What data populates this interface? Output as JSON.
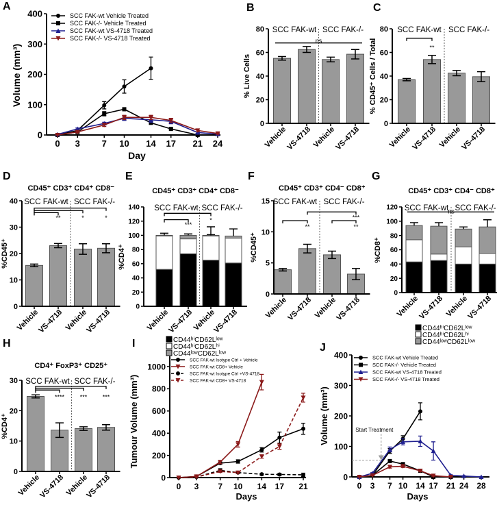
{
  "panel_letters": [
    "A",
    "B",
    "C",
    "D",
    "E",
    "F",
    "G",
    "H",
    "I",
    "J"
  ],
  "chart_data": [
    {
      "panel": "A",
      "type": "line",
      "title": "",
      "xlabel": "Day",
      "ylabel": "Volume (mm³)",
      "xlim": [
        0,
        24
      ],
      "xticks": [
        0,
        3,
        7,
        10,
        14,
        17,
        21,
        24
      ],
      "ylim": [
        0,
        400
      ],
      "yticks": [
        0,
        100,
        200,
        300,
        400
      ],
      "legend": "top-left",
      "annotations": [],
      "series": [
        {
          "name": "SCC FAK-wt Vehicle Treated",
          "color": "#000000",
          "marker": "circle",
          "dashed": false,
          "x": [
            0,
            3,
            7,
            10,
            14
          ],
          "values": [
            0,
            15,
            98,
            160,
            220
          ],
          "errors": [
            2,
            3,
            12,
            22,
            37
          ]
        },
        {
          "name": "SCC FAK-/-  Vehicle Treated",
          "color": "#000000",
          "marker": "square",
          "dashed": false,
          "x": [
            0,
            3,
            7,
            10,
            14,
            17,
            21
          ],
          "values": [
            0,
            10,
            70,
            85,
            40,
            20,
            0
          ],
          "errors": [
            1,
            2,
            7,
            5,
            3,
            2,
            1
          ]
        },
        {
          "name": "SCC FAK-wt VS-4718 Treated",
          "color": "#1f1f8f",
          "marker": "triangle",
          "dashed": false,
          "x": [
            0,
            3,
            7,
            10,
            14,
            17,
            21,
            24
          ],
          "values": [
            2,
            20,
            38,
            55,
            50,
            45,
            8,
            3
          ],
          "errors": [
            1,
            3,
            4,
            7,
            8,
            8,
            3,
            1
          ]
        },
        {
          "name": "SCC FAK-/- VS-4718 Treated",
          "color": "#8b1a1a",
          "marker": "triangle-down",
          "dashed": false,
          "x": [
            0,
            3,
            7,
            10,
            14,
            17,
            21,
            24
          ],
          "values": [
            0,
            10,
            33,
            58,
            58,
            48,
            15,
            5
          ],
          "errors": [
            1,
            3,
            5,
            7,
            7,
            7,
            4,
            2
          ]
        }
      ]
    },
    {
      "panel": "B",
      "type": "bar",
      "title": "",
      "ylabel": "% Live Cells",
      "ylim": [
        0,
        80
      ],
      "yticks": [
        0,
        20,
        40,
        60,
        80
      ],
      "categories": [
        "Vehicle",
        "VS-4718",
        "Vehicle",
        "VS-4718"
      ],
      "groups": [
        "SCC FAK-wt",
        "SCC FAK-/-"
      ],
      "values": [
        55,
        62.5,
        54,
        58.5
      ],
      "errors": [
        1.5,
        2.5,
        2,
        4
      ],
      "color": "#999999",
      "annotations": [
        "ns"
      ]
    },
    {
      "panel": "C",
      "type": "bar",
      "title": "",
      "ylabel": "% CD45⁺ Cells / Total",
      "ylim": [
        0,
        80
      ],
      "yticks": [
        0,
        20,
        40,
        60,
        80
      ],
      "categories": [
        "Vehicle",
        "VS-4718",
        "Vehicle",
        "VS-4718"
      ],
      "groups": [
        "SCC FAK-wt",
        "SCC FAK-/-"
      ],
      "values": [
        37,
        54,
        42.5,
        39.5
      ],
      "errors": [
        1,
        3.5,
        2.2,
        4.2
      ],
      "color": "#999999",
      "annotations": [
        "**"
      ]
    },
    {
      "panel": "D",
      "type": "bar",
      "title": "CD45⁺ CD3⁺ CD4⁺ CD8⁻",
      "ylabel": "%CD45⁺",
      "ylim": [
        0,
        40
      ],
      "yticks": [
        0,
        10,
        20,
        30,
        40
      ],
      "categories": [
        "Vehicle",
        "VS-4718",
        "Vehicle",
        "VS-4718"
      ],
      "groups": [
        "SCC FAK-wt",
        "SCC FAK-/-"
      ],
      "values": [
        15.5,
        23,
        21.7,
        22
      ],
      "errors": [
        0.5,
        0.8,
        2,
        1.7
      ],
      "color": "#999999",
      "annotations": [
        "**",
        "*",
        "*"
      ]
    },
    {
      "panel": "E",
      "type": "stacked-bar",
      "title": "CD45⁺ CD3⁺ CD4⁺ CD8⁻",
      "ylabel": "%CD4⁺",
      "ylim": [
        0,
        140
      ],
      "yticks": [
        0,
        20,
        40,
        60,
        80,
        100,
        120,
        140
      ],
      "categories": [
        "Vehicle",
        "VS-4718",
        "Vehicle",
        "VS-4718"
      ],
      "groups": [
        "SCC FAK-wt",
        "SCC FAK-/-"
      ],
      "series": [
        {
          "name": "CD44ʰⁱCD62Lˡᵒʷ",
          "color": "#000000",
          "values": [
            52,
            74,
            65,
            61
          ],
          "errors": [
            5,
            4,
            13,
            13
          ]
        },
        {
          "name": "CD44ʰⁱCD62Lʰⁱ",
          "color": "#ffffff",
          "values": [
            47,
            21,
            34,
            35
          ],
          "errors": [
            1,
            5,
            2,
            1
          ]
        },
        {
          "name": "CD44ˡᵒʷCD62Lˡᵒʷ",
          "color": "#999999",
          "values": [
            1,
            5,
            1,
            3
          ],
          "errors": [
            3,
            2,
            12,
            10
          ]
        }
      ],
      "annotations": [
        "***",
        "*"
      ]
    },
    {
      "panel": "F",
      "type": "bar",
      "title": "CD45⁺ CD3⁺ CD4⁻ CD8⁺",
      "ylabel": "%CD45⁺",
      "ylim": [
        0,
        15
      ],
      "yticks": [
        0,
        5,
        10,
        15
      ],
      "categories": [
        "Vehicle",
        "VS-4718",
        "Vehicle",
        "VS-4718"
      ],
      "groups": [
        "SCC FAK-wt",
        "SCC FAK-/-"
      ],
      "values": [
        3.9,
        7.3,
        6.3,
        3.2
      ],
      "errors": [
        0.2,
        0.7,
        0.6,
        0.9
      ],
      "color": "#999999",
      "annotations": [
        "**",
        "***",
        "**"
      ]
    },
    {
      "panel": "G",
      "type": "stacked-bar",
      "title": "CD45⁺ CD3⁺ CD4⁻ CD8⁺",
      "ylabel": "%CD8⁺",
      "ylim": [
        0,
        120
      ],
      "yticks": [
        0,
        20,
        40,
        60,
        80,
        100,
        120
      ],
      "categories": [
        "Vehicle",
        "VS-4718",
        "Vehicle",
        "VS-4718"
      ],
      "groups": [
        "SCC FAK-wt",
        "SCC FAK-/-"
      ],
      "series": [
        {
          "name": "CD44ʰⁱCD62Lˡᵒʷ",
          "color": "#000000",
          "values": [
            43,
            45,
            40,
            40
          ],
          "errors": [
            6,
            5,
            15,
            10
          ]
        },
        {
          "name": "CD44ʰⁱCD62Lʰⁱ",
          "color": "#ffffff",
          "values": [
            31,
            9,
            24,
            15
          ],
          "errors": [
            4,
            3,
            10,
            9
          ]
        },
        {
          "name": "CD44ˡᵒʷCD62Lˡᵒʷ",
          "color": "#999999",
          "values": [
            20,
            39,
            25,
            37
          ],
          "errors": [
            4,
            5,
            3,
            10
          ]
        }
      ],
      "annotations": [
        "ns"
      ]
    },
    {
      "panel": "H",
      "type": "bar",
      "title": "CD4⁺ FoxP3⁺ CD25⁺",
      "ylabel": "%CD4⁺",
      "ylim": [
        0,
        30
      ],
      "yticks": [
        0,
        10,
        20,
        30
      ],
      "categories": [
        "Vehicle",
        "VS-4718",
        "Vehicle",
        "VS-4718"
      ],
      "groups": [
        "SCC FAK-wt",
        "SCC FAK-/-"
      ],
      "values": [
        24.7,
        13.6,
        14.1,
        14.5
      ],
      "errors": [
        0.5,
        2.4,
        0.6,
        0.9
      ],
      "color": "#999999",
      "annotations": [
        "****",
        "***",
        "***"
      ]
    },
    {
      "panel": "I",
      "type": "line",
      "title": "",
      "xlabel": "Days",
      "ylabel": "Tumour Volume (mm³)",
      "xlim": [
        0,
        21
      ],
      "xticks": [
        0,
        3,
        7,
        10,
        14,
        17,
        21
      ],
      "ylim": [
        0,
        1000
      ],
      "yticks": [
        0,
        200,
        400,
        600,
        800,
        1000
      ],
      "legend": "top-left",
      "annotations": [],
      "series": [
        {
          "name": "SCC FAK-wt Isotype Ctrl + Vehicle",
          "color": "#000000",
          "marker": "circle",
          "dashed": false,
          "x": [
            0,
            3,
            7,
            10,
            14,
            17,
            21
          ],
          "values": [
            0,
            10,
            130,
            145,
            250,
            360,
            440
          ],
          "errors": [
            2,
            3,
            10,
            15,
            20,
            50,
            50
          ]
        },
        {
          "name": "SCC FAK-wt CD8+ Vehicle",
          "color": "#8b1a1a",
          "marker": "triangle-down",
          "dashed": false,
          "x": [
            0,
            3,
            7,
            10,
            14
          ],
          "values": [
            0,
            10,
            140,
            300,
            860
          ],
          "errors": [
            2,
            3,
            15,
            25,
            70
          ]
        },
        {
          "name": "SCC FAK-wt Isotype Ctrl +VS-4718",
          "color": "#000000",
          "marker": "circle",
          "dashed": true,
          "x": [
            0,
            3,
            7,
            10,
            14,
            17,
            21
          ],
          "values": [
            0,
            5,
            65,
            45,
            30,
            28,
            25
          ],
          "errors": [
            1,
            2,
            15,
            8,
            8,
            10,
            15
          ]
        },
        {
          "name": "SCC FAK-wt CD8+ VS-4718",
          "color": "#8b1a1a",
          "marker": "triangle-down",
          "dashed": true,
          "x": [
            0,
            3,
            7,
            10,
            14,
            17,
            21
          ],
          "values": [
            0,
            5,
            55,
            45,
            190,
            280,
            720
          ],
          "errors": [
            1,
            2,
            8,
            8,
            15,
            25,
            40
          ]
        }
      ]
    },
    {
      "panel": "J",
      "type": "line",
      "title": "",
      "xlabel": "Days",
      "ylabel": "Volume (mm³)",
      "xlim": [
        0,
        28
      ],
      "xticks": [
        0,
        3,
        7,
        10,
        14,
        17,
        21,
        24,
        28
      ],
      "ylim": [
        0,
        400
      ],
      "yticks": [
        0,
        100,
        200,
        300,
        400
      ],
      "legend": "top-left",
      "annotations": [
        "Start Treatment"
      ],
      "treatment_start": {
        "x": 5,
        "y": 55
      },
      "series": [
        {
          "name": "SCC FAK-wt Vehicle Treated",
          "color": "#000000",
          "marker": "circle",
          "dashed": false,
          "x": [
            0,
            3,
            7,
            10,
            14
          ],
          "values": [
            0,
            5,
            85,
            125,
            215
          ],
          "errors": [
            1,
            2,
            8,
            10,
            28
          ]
        },
        {
          "name": "SCC FAK-/-  Vehicle Treated",
          "color": "#000000",
          "marker": "square",
          "dashed": false,
          "x": [
            0,
            3,
            7,
            10,
            14,
            17,
            21
          ],
          "values": [
            0,
            5,
            52,
            42,
            20,
            0,
            0
          ],
          "errors": [
            1,
            1,
            4,
            4,
            3,
            1,
            1
          ]
        },
        {
          "name": "SCC FAK-wt VS-4718 Treated",
          "color": "#1f1f8f",
          "marker": "triangle",
          "dashed": false,
          "x": [
            0,
            3,
            7,
            10,
            14,
            17,
            21,
            24,
            28
          ],
          "values": [
            0,
            12,
            90,
            115,
            117,
            85,
            5,
            3,
            0
          ],
          "errors": [
            1,
            2,
            8,
            10,
            17,
            30,
            2,
            1,
            1
          ]
        },
        {
          "name": "SCC FAK-/- VS-4718 Treated",
          "color": "#8b1a1a",
          "marker": "triangle-down",
          "dashed": false,
          "x": [
            0,
            3,
            7,
            10,
            14,
            17,
            21
          ],
          "values": [
            0,
            5,
            33,
            35,
            20,
            4,
            0
          ],
          "errors": [
            1,
            1,
            4,
            4,
            3,
            2,
            1
          ]
        }
      ]
    }
  ]
}
